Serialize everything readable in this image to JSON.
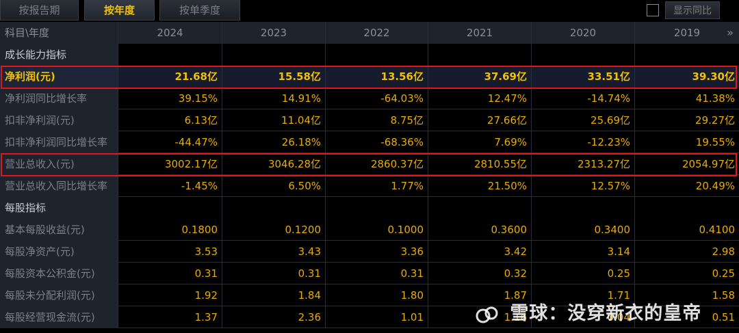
{
  "tabs": [
    {
      "label": "按报告期"
    },
    {
      "label": "按年度"
    },
    {
      "label": "按单季度"
    }
  ],
  "yoy_toggle": {
    "label": "显示同比"
  },
  "header": {
    "corner": "科目\\年度",
    "years": [
      "2024",
      "2023",
      "2022",
      "2021",
      "2020",
      "2019"
    ],
    "more": "»"
  },
  "rows": [
    {
      "label": "成长能力指标",
      "values": [
        "",
        "",
        "",
        "",
        "",
        ""
      ]
    },
    {
      "label": "净利润(元)",
      "values": [
        "21.68亿",
        "15.58亿",
        "13.56亿",
        "37.69亿",
        "33.51亿",
        "39.30亿"
      ]
    },
    {
      "label": "净利润同比增长率",
      "values": [
        "39.15%",
        "14.91%",
        "-64.03%",
        "12.47%",
        "-14.74%",
        "41.38%"
      ]
    },
    {
      "label": "扣非净利润(元)",
      "values": [
        "6.13亿",
        "11.04亿",
        "8.75亿",
        "27.66亿",
        "25.69亿",
        "29.27亿"
      ]
    },
    {
      "label": "扣非净利润同比增长率",
      "values": [
        "-44.47%",
        "26.18%",
        "-68.36%",
        "7.69%",
        "-12.23%",
        "19.55%"
      ]
    },
    {
      "label": "营业总收入(元)",
      "values": [
        "3002.17亿",
        "3046.28亿",
        "2860.37亿",
        "2810.55亿",
        "2313.27亿",
        "2054.97亿"
      ]
    },
    {
      "label": "营业总收入同比增长率",
      "values": [
        "-1.45%",
        "6.50%",
        "1.77%",
        "21.50%",
        "12.57%",
        "20.49%"
      ]
    },
    {
      "label": "每股指标",
      "values": [
        "",
        "",
        "",
        "",
        "",
        ""
      ]
    },
    {
      "label": "基本每股收益(元)",
      "values": [
        "0.1800",
        "0.1200",
        "0.1000",
        "0.3600",
        "0.3400",
        "0.4100"
      ]
    },
    {
      "label": "每股净资产(元)",
      "values": [
        "3.53",
        "3.43",
        "3.36",
        "3.42",
        "3.14",
        "2.98"
      ]
    },
    {
      "label": "每股资本公积金(元)",
      "values": [
        "0.31",
        "0.31",
        "0.31",
        "0.32",
        "0.25",
        "0.25"
      ]
    },
    {
      "label": "每股未分配利润(元)",
      "values": [
        "1.92",
        "1.84",
        "1.80",
        "1.87",
        "1.71",
        "1.58"
      ]
    },
    {
      "label": "每股经营现金流(元)",
      "values": [
        "1.37",
        "2.36",
        "1.01",
        "1.16",
        "0.04",
        "0.51"
      ]
    }
  ],
  "watermark": "雪球：没穿新衣的皇帝",
  "colors": {
    "value": "#e8ad00",
    "highlight_border": "#e2161d",
    "active_tab": "#f2c200"
  }
}
